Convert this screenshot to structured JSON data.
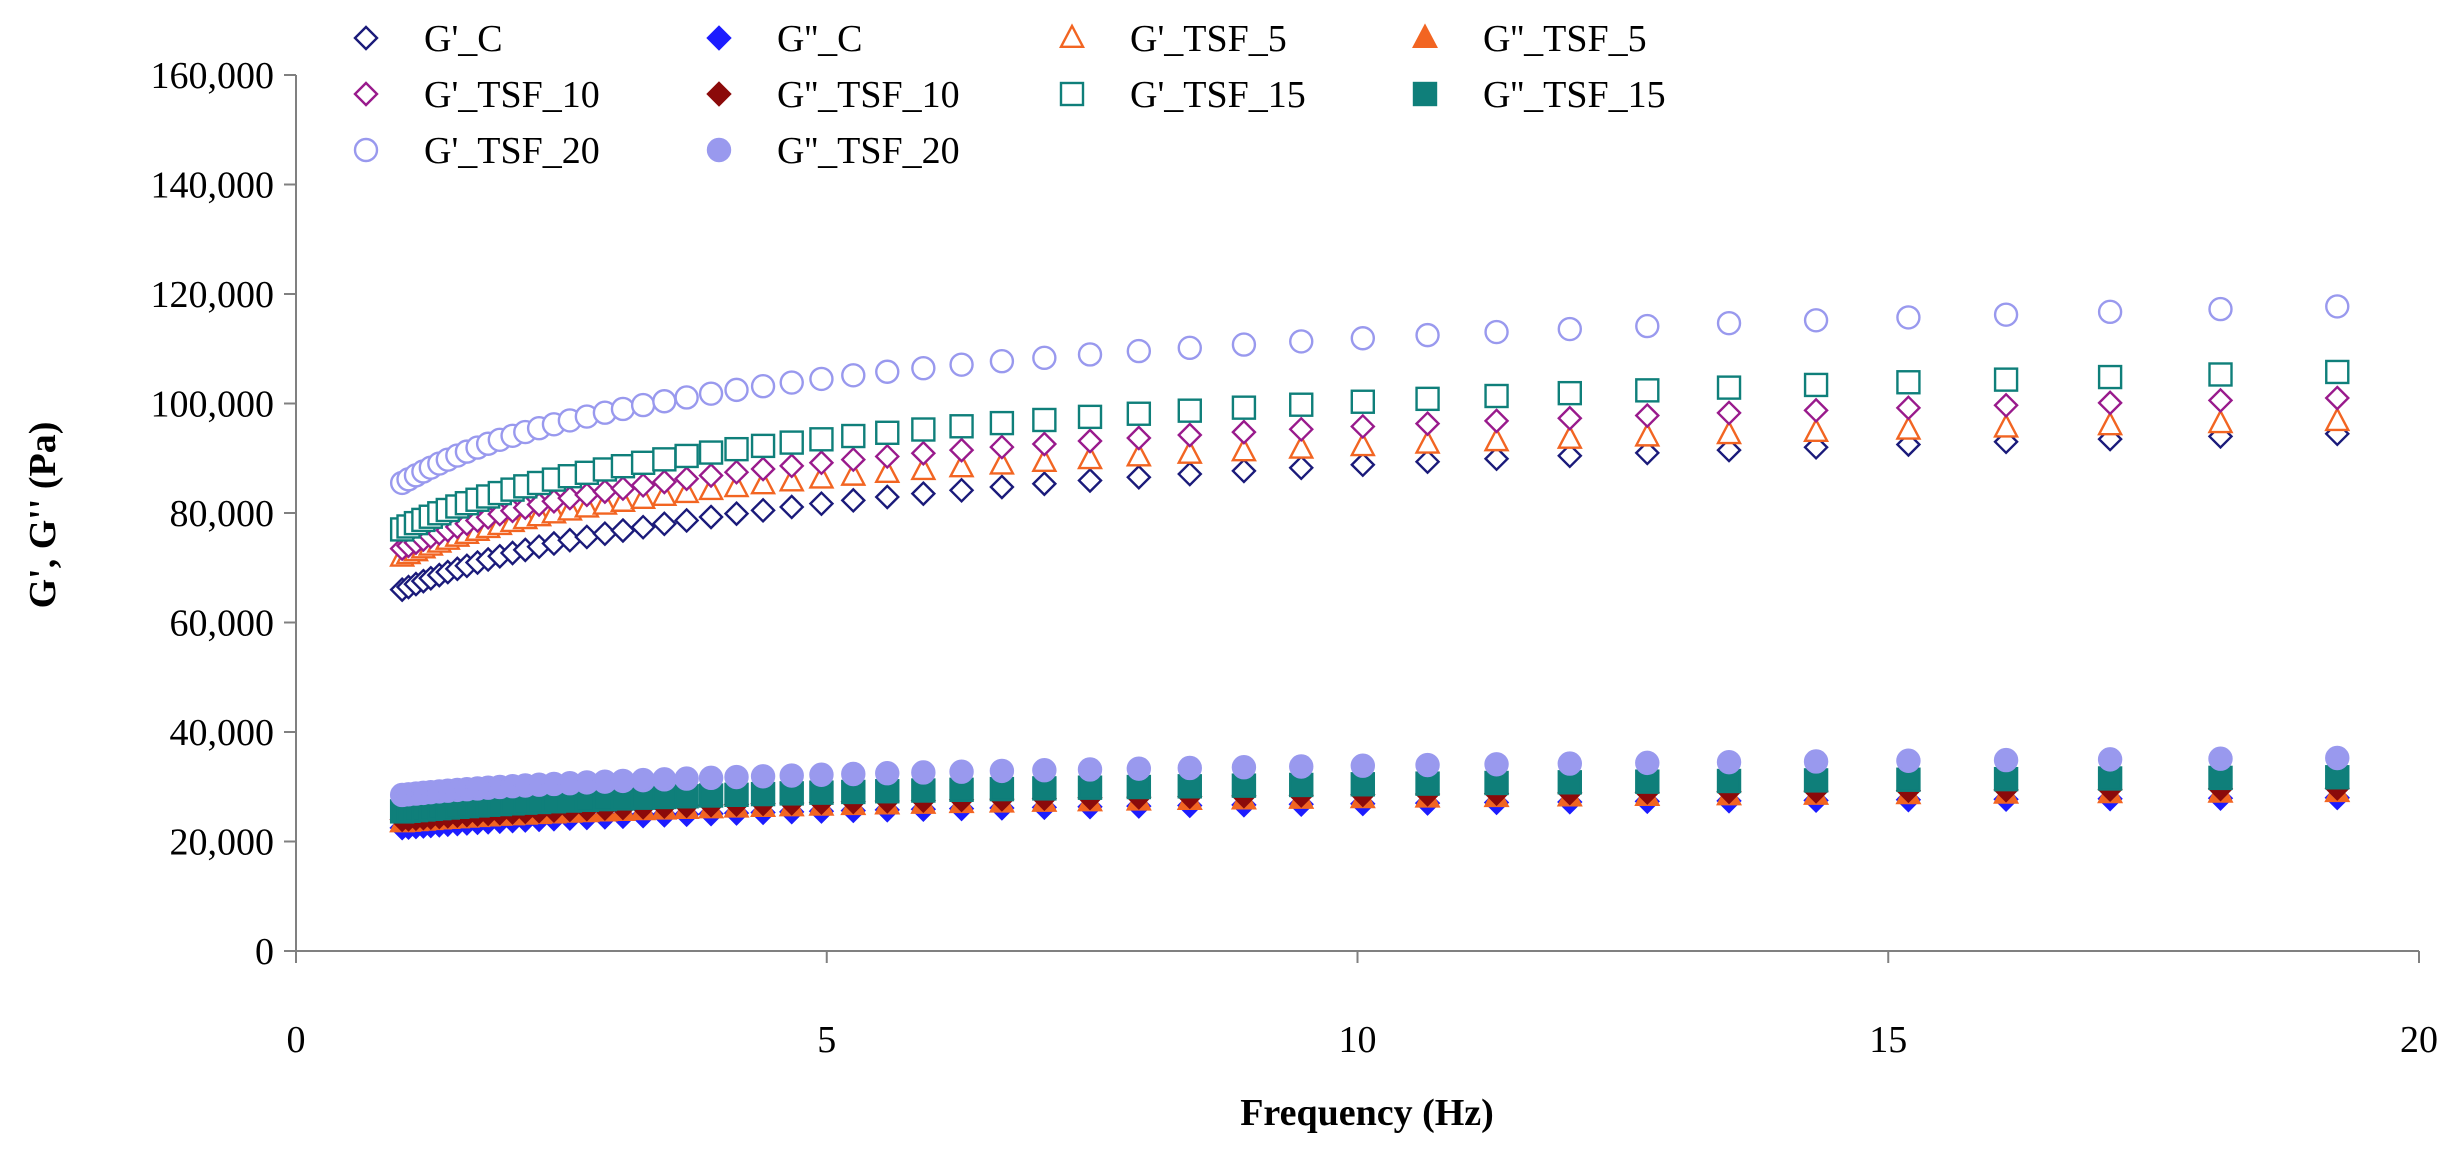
{
  "chart_data": {
    "type": "scatter",
    "title": "",
    "xlabel": "Frequency (Hz)",
    "ylabel": "G', G'' (Pa)",
    "xlim": [
      0,
      20
    ],
    "ylim": [
      0,
      160000
    ],
    "xticks": [
      0,
      5,
      10,
      15,
      20
    ],
    "xtick_labels": [
      "0",
      "5",
      "10",
      "15",
      "20"
    ],
    "yticks": [
      0,
      20000,
      40000,
      60000,
      80000,
      100000,
      120000,
      140000,
      160000
    ],
    "ytick_labels": [
      "0",
      "20,000",
      "40,000",
      "60,000",
      "80,000",
      "100,000",
      "120,000",
      "140,000",
      "160,000"
    ],
    "grid": false,
    "legend_position": "top-left",
    "x": [
      1.0,
      1.06,
      1.13,
      1.2,
      1.27,
      1.35,
      1.43,
      1.52,
      1.61,
      1.71,
      1.81,
      1.92,
      2.04,
      2.16,
      2.29,
      2.43,
      2.58,
      2.74,
      2.91,
      3.08,
      3.27,
      3.47,
      3.68,
      3.91,
      4.15,
      4.4,
      4.67,
      4.95,
      5.25,
      5.57,
      5.91,
      6.27,
      6.65,
      7.05,
      7.48,
      7.94,
      8.42,
      8.93,
      9.47,
      10.05,
      10.66,
      11.31,
      12.0,
      12.73,
      13.5,
      14.32,
      15.19,
      16.11,
      17.09,
      18.13,
      19.23
    ],
    "series": [
      {
        "name": "G'_C",
        "marker": "diamond",
        "filled": false,
        "color": "#1a1a7a",
        "values": [
          66000,
          66474,
          67019,
          67554,
          68078,
          68654,
          69206,
          69799,
          70358,
          70949,
          71509,
          72094,
          72694,
          73262,
          73843,
          74431,
          75025,
          75625,
          76225,
          76801,
          77413,
          78028,
          78639,
          79265,
          79883,
          80488,
          81101,
          81702,
          82312,
          82924,
          83537,
          84144,
          84743,
          85337,
          85933,
          86530,
          87114,
          87687,
          88254,
          88819,
          89369,
          89912,
          90449,
          90974,
          91489,
          92000,
          92506,
          93003,
          93497,
          93986,
          94466
        ]
      },
      {
        "name": "G''_C",
        "marker": "diamond",
        "filled": true,
        "color": "#1c1cff",
        "values": [
          22500,
          22591,
          22696,
          22799,
          22900,
          23011,
          23118,
          23232,
          23340,
          23454,
          23562,
          23675,
          23791,
          23900,
          24012,
          24126,
          24241,
          24356,
          24472,
          24583,
          24701,
          24820,
          24938,
          25059,
          25178,
          25295,
          25413,
          25529,
          25647,
          25765,
          25884,
          26001,
          26116,
          26231,
          26346,
          26461,
          26574,
          26685,
          26794,
          26903,
          27010,
          27114,
          27218,
          27320,
          27419,
          27518,
          27615,
          27711,
          27807,
          27901,
          27994
        ]
      },
      {
        "name": "G'_TSF_5",
        "marker": "triangle",
        "filled": false,
        "color": "#f26522",
        "values": [
          72000,
          72470,
          73000,
          73520,
          74020,
          74570,
          75090,
          75650,
          76170,
          76720,
          77240,
          77780,
          78330,
          78850,
          79380,
          79910,
          80440,
          80980,
          81510,
          82020,
          82560,
          83100,
          83630,
          84180,
          84710,
          85230,
          85760,
          86270,
          86790,
          87300,
          87820,
          88330,
          88830,
          89320,
          89820,
          90310,
          90790,
          91260,
          91730,
          92190,
          92640,
          93090,
          93530,
          93960,
          94380,
          94790,
          95200,
          95600,
          96000,
          96390,
          96780
        ]
      },
      {
        "name": "G''_TSF_5",
        "marker": "triangle",
        "filled": true,
        "color": "#f26522",
        "values": [
          23500,
          23590,
          23700,
          23800,
          23900,
          24010,
          24120,
          24230,
          24340,
          24450,
          24560,
          24670,
          24780,
          24890,
          25010,
          25120,
          25240,
          25350,
          25470,
          25580,
          25700,
          25820,
          25940,
          26060,
          26180,
          26290,
          26410,
          26530,
          26650,
          26760,
          26880,
          27000,
          27110,
          27230,
          27340,
          27460,
          27570,
          27680,
          27790,
          27900,
          28010,
          28110,
          28220,
          28320,
          28420,
          28520,
          28620,
          28720,
          28820,
          28910,
          29010
        ]
      },
      {
        "name": "G'_TSF_10",
        "marker": "diamond",
        "filled": false,
        "color": "#991a8c",
        "values": [
          73500,
          74010,
          74590,
          75150,
          75700,
          76290,
          76860,
          77470,
          78040,
          78640,
          79210,
          79800,
          80400,
          80970,
          81550,
          82140,
          82720,
          83320,
          83900,
          84460,
          85060,
          85660,
          86250,
          86850,
          87450,
          88030,
          88610,
          89180,
          89760,
          90330,
          90910,
          91480,
          92040,
          92600,
          93150,
          93700,
          94240,
          94770,
          95290,
          95810,
          96320,
          96820,
          97310,
          97800,
          98280,
          98750,
          99210,
          99670,
          100120,
          100560,
          101000
        ]
      },
      {
        "name": "G''_TSF_10",
        "marker": "diamond",
        "filled": true,
        "color": "#8b0a0a",
        "values": [
          24000,
          24100,
          24210,
          24320,
          24430,
          24540,
          24650,
          24770,
          24880,
          25000,
          25110,
          25230,
          25350,
          25460,
          25580,
          25700,
          25820,
          25940,
          26060,
          26180,
          26300,
          26420,
          26540,
          26670,
          26790,
          26910,
          27030,
          27150,
          27270,
          27390,
          27510,
          27630,
          27750,
          27870,
          27980,
          28100,
          28220,
          28330,
          28450,
          28560,
          28670,
          28780,
          28890,
          29000,
          29110,
          29210,
          29320,
          29420,
          29530,
          29630,
          29730
        ]
      },
      {
        "name": "G'_TSF_15",
        "marker": "square",
        "filled": false,
        "color": "#0f7f7a",
        "values": [
          77000,
          77540,
          78150,
          78740,
          79320,
          79950,
          80550,
          81190,
          81790,
          82420,
          83020,
          83640,
          84270,
          84870,
          85480,
          86100,
          86720,
          87340,
          87950,
          88550,
          89170,
          89800,
          90420,
          91040,
          91660,
          92260,
          92860,
          93460,
          94060,
          94650,
          95250,
          95840,
          96420,
          96990,
          97560,
          98130,
          98690,
          99240,
          99780,
          100320,
          100850,
          101370,
          101890,
          102400,
          102900,
          103390,
          103880,
          104360,
          104830,
          105300,
          105760
        ]
      },
      {
        "name": "G''_TSF_15",
        "marker": "square",
        "filled": true,
        "color": "#0f7f7a",
        "values": [
          25500,
          25610,
          25730,
          25850,
          25970,
          26090,
          26210,
          26340,
          26460,
          26590,
          26710,
          26840,
          26970,
          27090,
          27220,
          27350,
          27480,
          27610,
          27740,
          27870,
          28000,
          28130,
          28260,
          28400,
          28530,
          28660,
          28790,
          28920,
          29050,
          29180,
          29310,
          29440,
          29570,
          29700,
          29830,
          29950,
          30080,
          30200,
          30330,
          30450,
          30570,
          30690,
          30810,
          30930,
          31050,
          31160,
          31280,
          31390,
          31510,
          31620,
          31730
        ]
      },
      {
        "name": "G'_TSF_20",
        "marker": "circle",
        "filled": false,
        "color": "#9999ee",
        "values": [
          85500,
          86150,
          86880,
          87590,
          88280,
          89030,
          89740,
          90500,
          91210,
          91950,
          92650,
          93370,
          94100,
          94790,
          95490,
          96200,
          96910,
          97620,
          98320,
          99000,
          99710,
          100410,
          101100,
          101800,
          102490,
          103160,
          103830,
          104490,
          105150,
          105800,
          106450,
          107090,
          107720,
          108340,
          108960,
          109570,
          110170,
          110760,
          111340,
          111920,
          112490,
          113050,
          113600,
          114140,
          114670,
          115200,
          115720,
          116230,
          116740,
          117240,
          117730
        ]
      },
      {
        "name": "G''_TSF_20",
        "marker": "circle",
        "filled": true,
        "color": "#9999ee",
        "values": [
          28500,
          28620,
          28750,
          28880,
          29010,
          29150,
          29280,
          29420,
          29550,
          29690,
          29820,
          29960,
          30100,
          30230,
          30370,
          30510,
          30650,
          30790,
          30930,
          31070,
          31210,
          31350,
          31490,
          31630,
          31770,
          31910,
          32050,
          32190,
          32330,
          32470,
          32610,
          32750,
          32890,
          33020,
          33160,
          33300,
          33430,
          33570,
          33700,
          33840,
          33970,
          34100,
          34230,
          34360,
          34490,
          34620,
          34750,
          34870,
          35000,
          35120,
          35250
        ]
      }
    ]
  }
}
